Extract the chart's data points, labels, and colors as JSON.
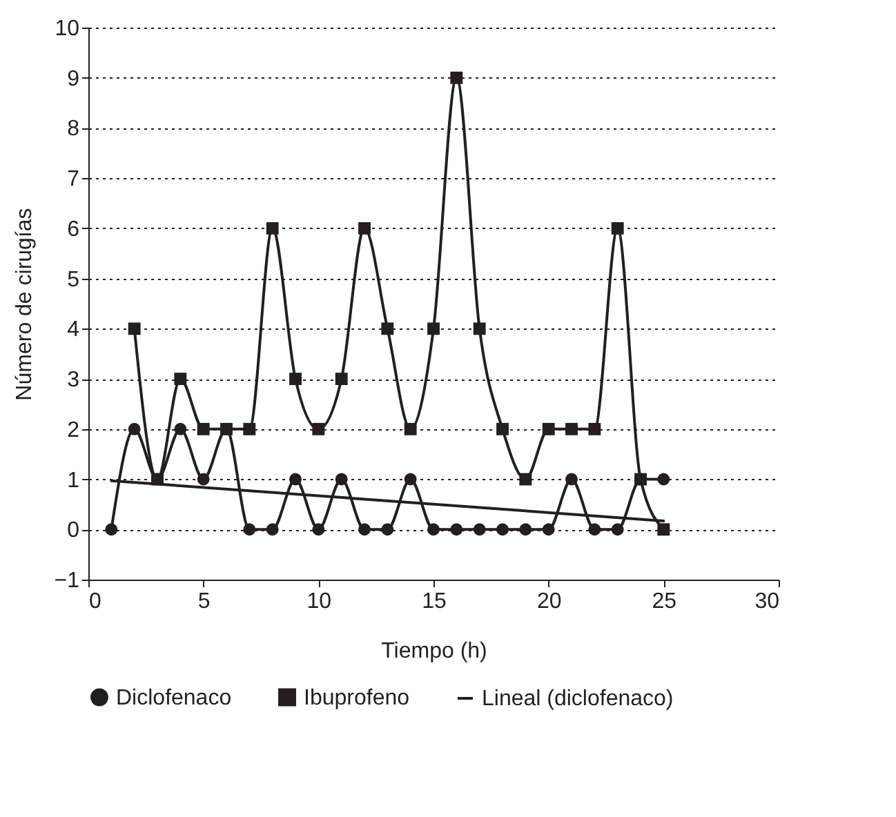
{
  "chart_data": {
    "type": "line",
    "xlabel": "Tiempo (h)",
    "ylabel": "Número de cirugías",
    "xlim": [
      0,
      30
    ],
    "xticks": [
      0,
      5,
      10,
      15,
      20,
      25,
      30
    ],
    "ylim": [
      -1,
      10
    ],
    "yticks": [
      -1,
      0,
      1,
      2,
      3,
      4,
      5,
      6,
      7,
      8,
      9,
      10
    ],
    "grid": "y",
    "legend": "bottom",
    "series": [
      {
        "name": "Diclofenaco",
        "color": "#231f20",
        "marker": "circle",
        "x": [
          1,
          2,
          3,
          4,
          5,
          6,
          7,
          8,
          9,
          10,
          11,
          12,
          13,
          14,
          15,
          16,
          17,
          18,
          19,
          20,
          21,
          22,
          23,
          24,
          25
        ],
        "values": [
          0,
          2,
          1,
          2,
          1,
          2,
          0,
          0,
          1,
          0,
          1,
          0,
          0,
          1,
          0,
          0,
          0,
          0,
          0,
          0,
          1,
          0,
          0,
          1,
          1
        ]
      },
      {
        "name": "Ibuprofeno",
        "color": "#231f20",
        "marker": "square",
        "x": [
          2,
          3,
          4,
          5,
          6,
          7,
          8,
          9,
          10,
          11,
          12,
          13,
          14,
          15,
          16,
          17,
          18,
          19,
          20,
          21,
          22,
          23,
          24,
          25
        ],
        "values": [
          4,
          1,
          3,
          2,
          2,
          2,
          6,
          3,
          2,
          3,
          6,
          4,
          2,
          4,
          9,
          4,
          2,
          1,
          2,
          2,
          2,
          6,
          1,
          0
        ]
      },
      {
        "name": "Lineal (diclofenaco)",
        "color": "#231f20",
        "marker": "none",
        "x": [
          1,
          25
        ],
        "values": [
          0.97,
          0.17
        ]
      }
    ]
  }
}
